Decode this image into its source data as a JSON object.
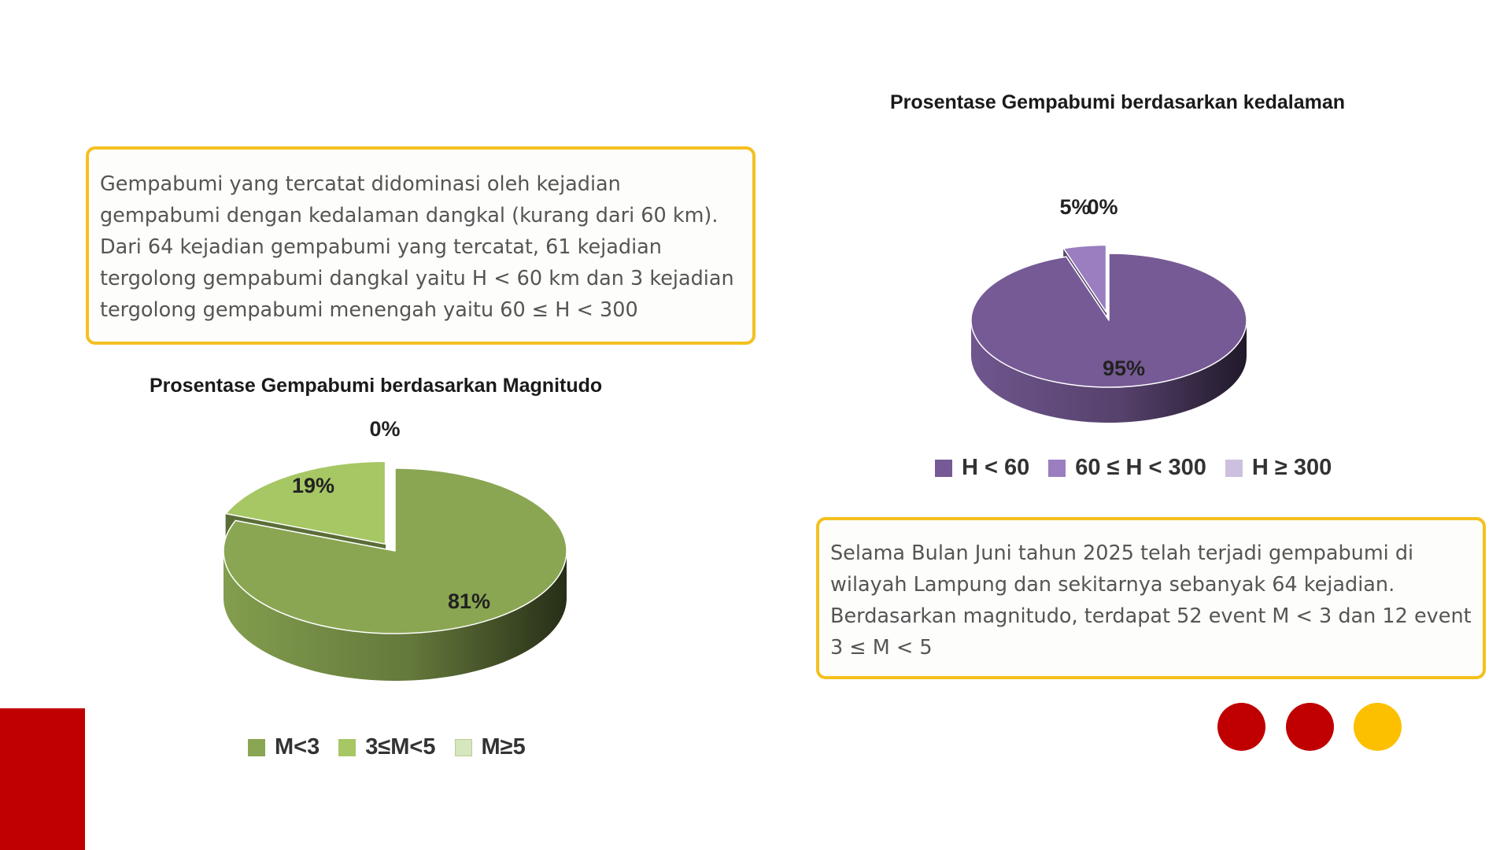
{
  "depth_text": "Gempabumi yang tercatat didominasi oleh kejadian gempabumi dengan kedalaman dangkal (kurang dari 60 km). Dari 64 kejadian gempabumi yang tercatat, 61 kejadian tergolong gempabumi dangkal yaitu H < 60 km dan 3 kejadian tergolong gempabumi menengah yaitu 60 ≤ H < 300",
  "magnitude_text": "Selama Bulan Juni tahun 2025 telah terjadi gempabumi di wilayah Lampung dan sekitarnya sebanyak 64 kejadian. Berdasarkan magnitudo, terdapat 52 event M < 3 dan 12 event 3 ≤ M < 5",
  "colors": {
    "accent_yellow": "#f4c020",
    "accent_red": "#c00000",
    "dot_yellow": "#fcc000"
  },
  "chart_data": [
    {
      "type": "pie",
      "title": "Prosentase Gempabumi berdasarkan kedalaman",
      "categories": [
        "H < 60",
        "60 ≤ H < 300",
        "H ≥ 300"
      ],
      "values": [
        95,
        5,
        0
      ],
      "labels": [
        "95%",
        "5%",
        "0%"
      ],
      "colors": [
        "#765a95",
        "#9a7ec0",
        "#ccc0de"
      ],
      "legend": "bottom"
    },
    {
      "type": "pie",
      "title": "Prosentase Gempabumi berdasarkan Magnitudo",
      "categories": [
        "M<3",
        "3≤M<5",
        "M≥5"
      ],
      "values": [
        81,
        19,
        0
      ],
      "labels": [
        "81%",
        "19%",
        "0%"
      ],
      "colors": [
        "#8aa652",
        "#a6c764",
        "#d6e6bd"
      ],
      "legend": "bottom"
    }
  ]
}
